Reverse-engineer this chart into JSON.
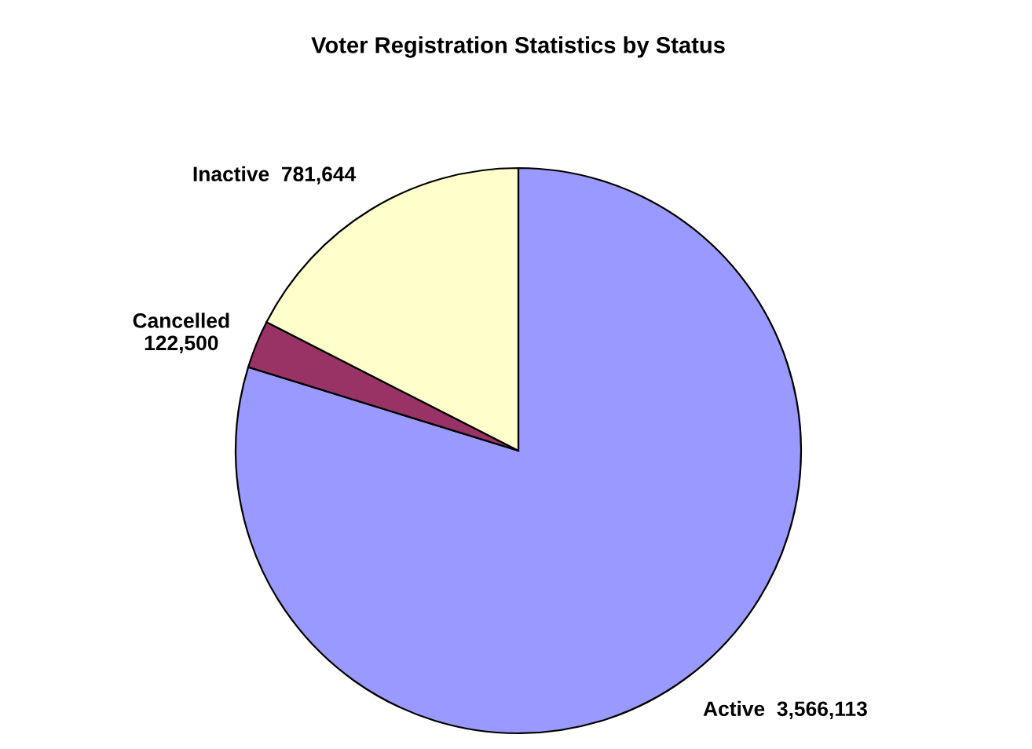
{
  "chart_data": {
    "type": "pie",
    "title": "Voter Registration Statistics by Status",
    "categories": [
      "Active",
      "Cancelled",
      "Inactive"
    ],
    "values": [
      3566113,
      122500,
      781644
    ],
    "value_labels": [
      "3,566,113",
      "122,500",
      "781,644"
    ],
    "colors": [
      "#9999ff",
      "#993366",
      "#ffffcc"
    ]
  }
}
